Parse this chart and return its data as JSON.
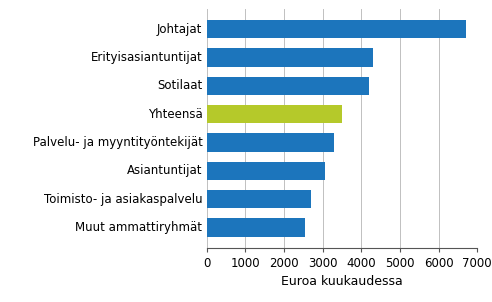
{
  "categories": [
    "Muut ammattiryhmät",
    "Toimisto- ja asiakaspalvelu",
    "Asiantuntijat",
    "Palvelu- ja myyntityöntekijät",
    "Yhteensä",
    "Sotilaat",
    "Erityisasiantuntijat",
    "Johtajat"
  ],
  "values": [
    2550,
    2700,
    3050,
    3300,
    3500,
    4200,
    4300,
    6700
  ],
  "bar_colors": [
    "#1c75bc",
    "#1c75bc",
    "#1c75bc",
    "#1c75bc",
    "#b5c92a",
    "#1c75bc",
    "#1c75bc",
    "#1c75bc"
  ],
  "xlabel": "Euroa kuukaudessa",
  "xlim": [
    0,
    7000
  ],
  "xticks": [
    0,
    1000,
    2000,
    3000,
    4000,
    5000,
    6000,
    7000
  ],
  "background_color": "#ffffff",
  "grid_color": "#c0c0c0",
  "bar_height": 0.65,
  "label_fontsize": 8.5,
  "xlabel_fontsize": 9
}
